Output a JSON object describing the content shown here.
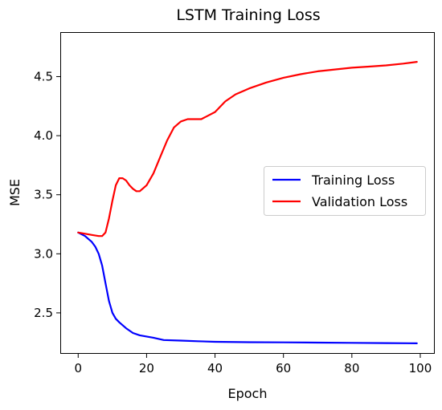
{
  "chart_data": {
    "type": "line",
    "title": "LSTM Training Loss",
    "xlabel": "Epoch",
    "ylabel": "MSE",
    "xlim": [
      -5,
      104
    ],
    "ylim": [
      2.16,
      4.87
    ],
    "x_ticks": [
      0,
      20,
      40,
      60,
      80,
      100
    ],
    "y_ticks": [
      2.5,
      3.0,
      3.5,
      4.0,
      4.5
    ],
    "x_tick_labels": [
      "0",
      "20",
      "40",
      "60",
      "80",
      "100"
    ],
    "y_tick_labels": [
      "2.5",
      "3.0",
      "3.5",
      "4.0",
      "4.5"
    ],
    "grid": false,
    "legend_position": "center-right",
    "series": [
      {
        "name": "Training Loss",
        "color": "#0000ff",
        "points": [
          [
            0,
            3.18
          ],
          [
            2,
            3.15
          ],
          [
            4,
            3.1
          ],
          [
            5,
            3.06
          ],
          [
            6,
            3.0
          ],
          [
            7,
            2.9
          ],
          [
            8,
            2.75
          ],
          [
            9,
            2.6
          ],
          [
            10,
            2.5
          ],
          [
            11,
            2.45
          ],
          [
            12,
            2.42
          ],
          [
            14,
            2.37
          ],
          [
            16,
            2.33
          ],
          [
            18,
            2.31
          ],
          [
            20,
            2.3
          ],
          [
            22,
            2.29
          ],
          [
            25,
            2.27
          ],
          [
            30,
            2.265
          ],
          [
            35,
            2.26
          ],
          [
            40,
            2.255
          ],
          [
            50,
            2.252
          ],
          [
            60,
            2.25
          ],
          [
            70,
            2.248
          ],
          [
            80,
            2.246
          ],
          [
            90,
            2.244
          ],
          [
            99,
            2.242
          ]
        ]
      },
      {
        "name": "Validation Loss",
        "color": "#ff0000",
        "points": [
          [
            0,
            3.18
          ],
          [
            2,
            3.17
          ],
          [
            4,
            3.16
          ],
          [
            6,
            3.15
          ],
          [
            7,
            3.15
          ],
          [
            8,
            3.18
          ],
          [
            9,
            3.3
          ],
          [
            10,
            3.45
          ],
          [
            11,
            3.58
          ],
          [
            12,
            3.64
          ],
          [
            13,
            3.64
          ],
          [
            14,
            3.62
          ],
          [
            15,
            3.58
          ],
          [
            16,
            3.55
          ],
          [
            17,
            3.53
          ],
          [
            18,
            3.53
          ],
          [
            20,
            3.58
          ],
          [
            22,
            3.68
          ],
          [
            24,
            3.82
          ],
          [
            26,
            3.96
          ],
          [
            28,
            4.07
          ],
          [
            30,
            4.12
          ],
          [
            32,
            4.14
          ],
          [
            36,
            4.14
          ],
          [
            40,
            4.2
          ],
          [
            43,
            4.29
          ],
          [
            46,
            4.35
          ],
          [
            50,
            4.4
          ],
          [
            55,
            4.45
          ],
          [
            60,
            4.49
          ],
          [
            65,
            4.52
          ],
          [
            70,
            4.545
          ],
          [
            75,
            4.56
          ],
          [
            80,
            4.575
          ],
          [
            85,
            4.585
          ],
          [
            90,
            4.595
          ],
          [
            95,
            4.61
          ],
          [
            99,
            4.625
          ]
        ]
      }
    ]
  }
}
